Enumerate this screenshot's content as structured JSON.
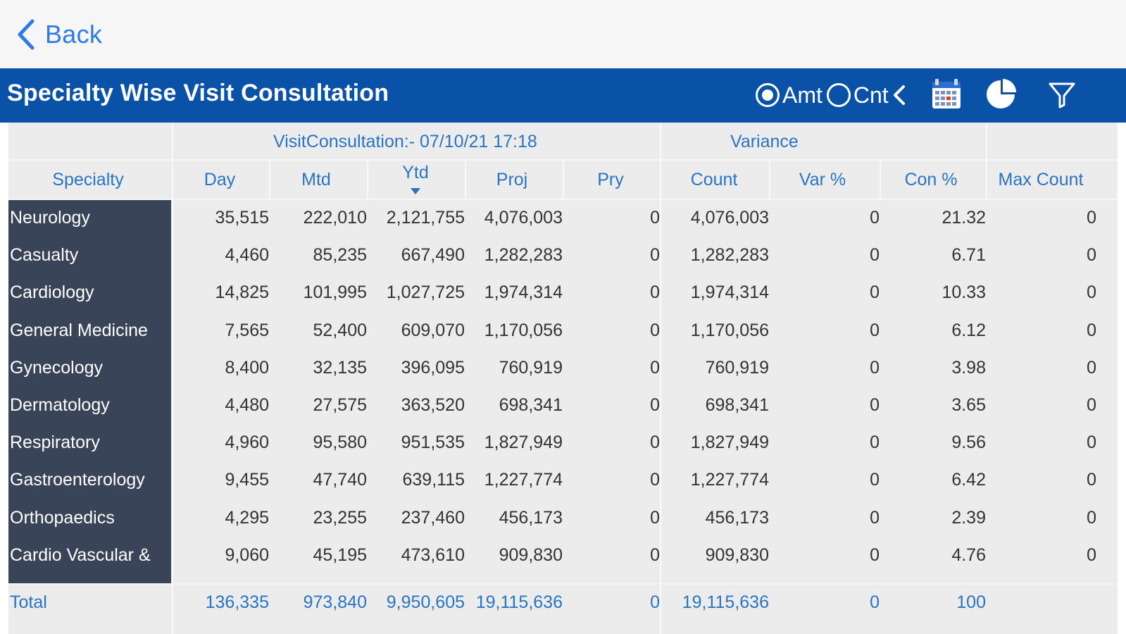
{
  "nav": {
    "back_label": "Back"
  },
  "header": {
    "title": "Specialty Wise Visit Consultation",
    "radio_amt_label": "Amt",
    "radio_cnt_label": "Cnt",
    "selected": "Amt"
  },
  "table": {
    "group_headers": {
      "consultation": "VisitConsultation:- 07/10/21 17:18",
      "variance": "Variance"
    },
    "columns": [
      "Specialty",
      "Day",
      "Mtd",
      "Ytd",
      "Proj",
      "Pry",
      "Count",
      "Var %",
      "Con %",
      "Max Count"
    ],
    "sorted_column": "Ytd",
    "rows": [
      [
        "Neurology",
        "35,515",
        "222,010",
        "2,121,755",
        "4,076,003",
        "0",
        "4,076,003",
        "0",
        "21.32",
        "0"
      ],
      [
        "Casualty",
        "4,460",
        "85,235",
        "667,490",
        "1,282,283",
        "0",
        "1,282,283",
        "0",
        "6.71",
        "0"
      ],
      [
        "Cardiology",
        "14,825",
        "101,995",
        "1,027,725",
        "1,974,314",
        "0",
        "1,974,314",
        "0",
        "10.33",
        "0"
      ],
      [
        "General Medicine",
        "7,565",
        "52,400",
        "609,070",
        "1,170,056",
        "0",
        "1,170,056",
        "0",
        "6.12",
        "0"
      ],
      [
        "Gynecology",
        "8,400",
        "32,135",
        "396,095",
        "760,919",
        "0",
        "760,919",
        "0",
        "3.98",
        "0"
      ],
      [
        "Dermatology",
        "4,480",
        "27,575",
        "363,520",
        "698,341",
        "0",
        "698,341",
        "0",
        "3.65",
        "0"
      ],
      [
        "Respiratory",
        "4,960",
        "95,580",
        "951,535",
        "1,827,949",
        "0",
        "1,827,949",
        "0",
        "9.56",
        "0"
      ],
      [
        "Gastroenterology",
        "9,455",
        "47,740",
        "639,115",
        "1,227,774",
        "0",
        "1,227,774",
        "0",
        "6.42",
        "0"
      ],
      [
        "Orthopaedics",
        "4,295",
        "23,255",
        "237,460",
        "456,173",
        "0",
        "456,173",
        "0",
        "2.39",
        "0"
      ],
      [
        "Cardio Vascular &",
        "9,060",
        "45,195",
        "473,610",
        "909,830",
        "0",
        "909,830",
        "0",
        "4.76",
        "0"
      ]
    ],
    "total": {
      "label": "Total",
      "values": [
        "136,335",
        "973,840",
        "9,950,605",
        "19,115,636",
        "0",
        "19,115,636",
        "0",
        "100",
        ""
      ]
    }
  },
  "icons": [
    "chevron-left-icon",
    "calendar-icon",
    "pie-chart-icon",
    "filter-icon"
  ],
  "colors": {
    "header_bg": "#0a52a8",
    "accent": "#2a74c4",
    "specialty_bg": "#3a4459",
    "table_bg": "#ececec"
  }
}
